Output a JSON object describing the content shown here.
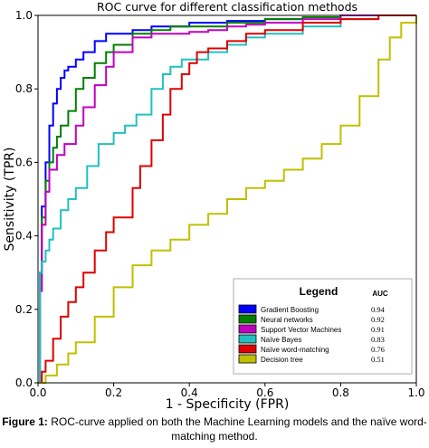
{
  "chart_data": {
    "type": "line",
    "title": "ROC curve for different classification methods",
    "xlabel": "1 - Specificity (FPR)",
    "ylabel": "Sensitivity (TPR)",
    "xlim": [
      0,
      1
    ],
    "ylim": [
      0,
      1
    ],
    "xticks": [
      "0.0",
      "0.2",
      "0.4",
      "0.6",
      "0.8",
      "1.0"
    ],
    "yticks": [
      "0.0",
      "0.2",
      "0.4",
      "0.6",
      "0.8",
      "1.0"
    ],
    "legend": {
      "title": "Legend",
      "auc_header": "AUC",
      "placement": "bottom-right"
    },
    "series": [
      {
        "name": "Gradient Boosting",
        "auc": "0.94",
        "color": "#0000ff",
        "x": [
          0,
          0.005,
          0.01,
          0.02,
          0.03,
          0.04,
          0.05,
          0.06,
          0.07,
          0.08,
          0.1,
          0.12,
          0.15,
          0.18,
          0.2,
          0.25,
          0.3,
          0.35,
          0.4,
          0.5,
          0.6,
          0.7,
          0.8,
          0.9,
          1.0
        ],
        "y": [
          0,
          0.3,
          0.48,
          0.6,
          0.7,
          0.76,
          0.8,
          0.83,
          0.85,
          0.86,
          0.88,
          0.9,
          0.93,
          0.95,
          0.95,
          0.96,
          0.97,
          0.97,
          0.98,
          0.985,
          0.99,
          0.995,
          1.0,
          1.0,
          1.0
        ]
      },
      {
        "name": "Neural networks",
        "auc": "0.92",
        "color": "#008000",
        "x": [
          0,
          0.005,
          0.01,
          0.02,
          0.03,
          0.04,
          0.05,
          0.06,
          0.08,
          0.1,
          0.12,
          0.15,
          0.18,
          0.2,
          0.25,
          0.3,
          0.35,
          0.4,
          0.5,
          0.6,
          0.7,
          0.8,
          0.9,
          1.0
        ],
        "y": [
          0,
          0.25,
          0.45,
          0.55,
          0.6,
          0.64,
          0.67,
          0.7,
          0.74,
          0.8,
          0.83,
          0.87,
          0.9,
          0.92,
          0.95,
          0.96,
          0.97,
          0.97,
          0.98,
          0.99,
          0.995,
          1.0,
          1.0,
          1.0
        ]
      },
      {
        "name": "Support Vector Machines",
        "auc": "0.91",
        "color": "#c000c0",
        "x": [
          0,
          0.005,
          0.01,
          0.02,
          0.03,
          0.05,
          0.07,
          0.1,
          0.12,
          0.15,
          0.18,
          0.2,
          0.25,
          0.3,
          0.35,
          0.4,
          0.45,
          0.5,
          0.55,
          0.6,
          0.7,
          0.8,
          0.9,
          1.0
        ],
        "y": [
          0,
          0.25,
          0.43,
          0.52,
          0.58,
          0.62,
          0.65,
          0.7,
          0.75,
          0.81,
          0.86,
          0.9,
          0.94,
          0.95,
          0.95,
          0.955,
          0.96,
          0.97,
          0.975,
          0.98,
          0.99,
          1.0,
          1.0,
          1.0
        ]
      },
      {
        "name": "Naïve Bayes",
        "auc": "0.83",
        "color": "#20c0c0",
        "x": [
          0,
          0.005,
          0.01,
          0.02,
          0.03,
          0.04,
          0.06,
          0.08,
          0.1,
          0.13,
          0.16,
          0.2,
          0.23,
          0.26,
          0.3,
          0.33,
          0.35,
          0.38,
          0.4,
          0.45,
          0.5,
          0.55,
          0.6,
          0.7,
          0.8,
          0.9,
          1.0
        ],
        "y": [
          0,
          0.3,
          0.33,
          0.36,
          0.39,
          0.42,
          0.47,
          0.5,
          0.53,
          0.59,
          0.65,
          0.68,
          0.7,
          0.73,
          0.8,
          0.84,
          0.86,
          0.88,
          0.88,
          0.9,
          0.92,
          0.94,
          0.95,
          0.97,
          0.99,
          1.0,
          1.0
        ]
      },
      {
        "name": "Naïve word-matching",
        "auc": "0.76",
        "color": "#e00000",
        "x": [
          0,
          0.01,
          0.02,
          0.04,
          0.06,
          0.08,
          0.1,
          0.12,
          0.15,
          0.18,
          0.2,
          0.25,
          0.27,
          0.3,
          0.33,
          0.35,
          0.38,
          0.4,
          0.42,
          0.45,
          0.5,
          0.55,
          0.6,
          0.7,
          0.8,
          0.9,
          1.0
        ],
        "y": [
          0,
          0.03,
          0.06,
          0.12,
          0.18,
          0.22,
          0.26,
          0.3,
          0.36,
          0.41,
          0.45,
          0.53,
          0.59,
          0.66,
          0.73,
          0.8,
          0.84,
          0.87,
          0.9,
          0.91,
          0.93,
          0.95,
          0.96,
          0.98,
          0.99,
          1.0,
          1.0
        ]
      },
      {
        "name": "Decision tree",
        "auc": "0.51",
        "color": "#c0c000",
        "x": [
          0,
          0.02,
          0.05,
          0.08,
          0.1,
          0.15,
          0.2,
          0.25,
          0.3,
          0.35,
          0.4,
          0.45,
          0.5,
          0.55,
          0.6,
          0.65,
          0.7,
          0.75,
          0.8,
          0.85,
          0.9,
          0.93,
          0.96,
          1.0
        ],
        "y": [
          0,
          0.02,
          0.05,
          0.08,
          0.11,
          0.18,
          0.26,
          0.32,
          0.36,
          0.39,
          0.43,
          0.46,
          0.5,
          0.53,
          0.55,
          0.58,
          0.61,
          0.65,
          0.7,
          0.78,
          0.88,
          0.94,
          0.98,
          1.0
        ]
      }
    ]
  },
  "caption": {
    "label": "Figure 1:",
    "text": " ROC-curve applied on both the Machine Learning models and the naïve word-matching method."
  }
}
